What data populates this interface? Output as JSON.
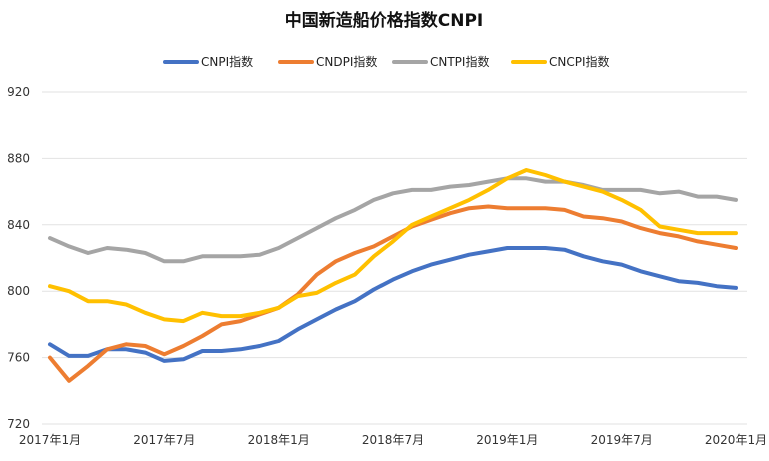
{
  "chart_data": {
    "type": "line",
    "title": "中国新造船价格指数CNPI",
    "xlabel": "",
    "ylabel": "",
    "ylim": [
      720,
      920
    ],
    "yticks": [
      720,
      760,
      800,
      840,
      880,
      920
    ],
    "grid": true,
    "legend_position": "top",
    "x": [
      "2017年1月",
      "2017年2月",
      "2017年3月",
      "2017年4月",
      "2017年5月",
      "2017年6月",
      "2017年7月",
      "2017年8月",
      "2017年9月",
      "2017年10月",
      "2017年11月",
      "2017年12月",
      "2018年1月",
      "2018年2月",
      "2018年3月",
      "2018年4月",
      "2018年5月",
      "2018年6月",
      "2018年7月",
      "2018年8月",
      "2018年9月",
      "2018年10月",
      "2018年11月",
      "2018年12月",
      "2019年1月",
      "2019年2月",
      "2019年3月",
      "2019年4月",
      "2019年5月",
      "2019年6月",
      "2019年7月",
      "2019年8月",
      "2019年9月",
      "2019年10月",
      "2019年11月",
      "2019年12月",
      "2020年1月"
    ],
    "xtick_labels": [
      "2017年1月",
      "2017年7月",
      "2018年1月",
      "2018年7月",
      "2019年1月",
      "2019年7月",
      "2020年1月"
    ],
    "series": [
      {
        "name": "CNPI指数",
        "color": "#4472C4",
        "values": [
          768,
          761,
          761,
          765,
          765,
          763,
          758,
          759,
          764,
          764,
          765,
          767,
          770,
          777,
          783,
          789,
          794,
          801,
          807,
          812,
          816,
          819,
          822,
          824,
          826,
          826,
          826,
          825,
          821,
          818,
          816,
          812,
          809,
          806,
          805,
          803,
          802
        ]
      },
      {
        "name": "CNDPI指数",
        "color": "#ED7D31",
        "values": [
          760,
          746,
          755,
          765,
          768,
          767,
          762,
          767,
          773,
          780,
          782,
          786,
          790,
          798,
          810,
          818,
          823,
          827,
          833,
          839,
          843,
          847,
          850,
          851,
          850,
          850,
          850,
          849,
          845,
          844,
          842,
          838,
          835,
          833,
          830,
          828,
          826
        ]
      },
      {
        "name": "CNTPI指数",
        "color": "#A5A5A5",
        "values": [
          832,
          827,
          823,
          826,
          825,
          823,
          818,
          818,
          821,
          821,
          821,
          822,
          826,
          832,
          838,
          844,
          849,
          855,
          859,
          861,
          861,
          863,
          864,
          866,
          868,
          868,
          866,
          866,
          864,
          861,
          861,
          861,
          859,
          860,
          857,
          857,
          855
        ]
      },
      {
        "name": "CNCPI指数",
        "color": "#FFC000",
        "values": [
          803,
          800,
          794,
          794,
          792,
          787,
          783,
          782,
          787,
          785,
          785,
          787,
          790,
          797,
          799,
          805,
          810,
          821,
          830,
          840,
          845,
          850,
          855,
          861,
          868,
          873,
          870,
          866,
          863,
          860,
          855,
          849,
          839,
          837,
          835,
          835,
          835
        ]
      }
    ]
  }
}
